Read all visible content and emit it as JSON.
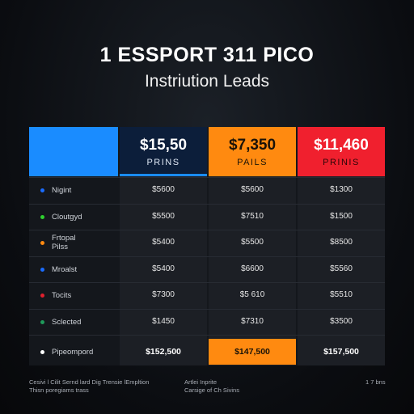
{
  "header": {
    "title": "1 ESSPORT 311 PICO",
    "subtitle": "Instriution Leads"
  },
  "columns": [
    {
      "price": "$15,50",
      "unit": "PRINS",
      "color": "#0c1e3a"
    },
    {
      "price": "$7,350",
      "unit": "PAILS",
      "color": "#ff8a10"
    },
    {
      "price": "$11,460",
      "unit": "PRINIS",
      "color": "#f0202e"
    }
  ],
  "rows": [
    {
      "label": "Nigint",
      "dot": "#1a6cff",
      "values": [
        "$5600",
        "$5600",
        "$1300"
      ]
    },
    {
      "label": "Cloutgyd",
      "dot": "#2fd12f",
      "values": [
        "$5500",
        "$7510",
        "$1500"
      ]
    },
    {
      "label": "Frtopal\nPilss",
      "dot": "#ff8a10",
      "values": [
        "$5400",
        "$5500",
        "$8500"
      ]
    },
    {
      "label": "Mroalst",
      "dot": "#1a6cff",
      "values": [
        "$5400",
        "$6600",
        "$5560"
      ]
    },
    {
      "label": "Tocits",
      "dot": "#e0202e",
      "values": [
        "$7300",
        "$5 610",
        "$5510"
      ]
    },
    {
      "label": "Sclected",
      "dot": "#1f9a5a",
      "values": [
        "$1450",
        "$7310",
        "$3500"
      ]
    }
  ],
  "total": {
    "label": "Pipeompord",
    "dot": "#ffffff",
    "values": [
      "$152,500",
      "$147,500",
      "$157,500"
    ]
  },
  "footer": {
    "left_line1": "Cesivi l Cilit Sernd lard Dig Trensie lEmpltion",
    "left_line2": "Thisn poregiams trass",
    "mid_line1": "Artlei Inprite",
    "mid_line2": "Carsige of Ch Sivins",
    "right": "1 7 bns"
  }
}
